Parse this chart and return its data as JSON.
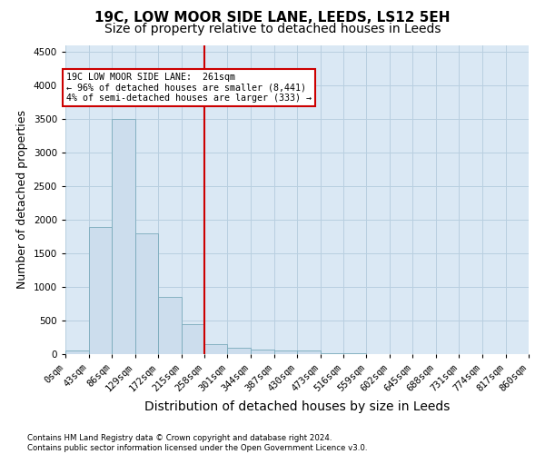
{
  "title": "19C, LOW MOOR SIDE LANE, LEEDS, LS12 5EH",
  "subtitle": "Size of property relative to detached houses in Leeds",
  "xlabel": "Distribution of detached houses by size in Leeds",
  "ylabel": "Number of detached properties",
  "bar_color": "#ccdded",
  "bar_edge_color": "#7aaabb",
  "vline_color": "#cc0000",
  "annotation_line1": "19C LOW MOOR SIDE LANE:  261sqm",
  "annotation_line2": "← 96% of detached houses are smaller (8,441)",
  "annotation_line3": "4% of semi-detached houses are larger (333) →",
  "annotation_box_color": "#cc0000",
  "footnote": "Contains HM Land Registry data © Crown copyright and database right 2024.\nContains public sector information licensed under the Open Government Licence v3.0.",
  "bin_edges": [
    0,
    43,
    86,
    129,
    172,
    215,
    258,
    301,
    344,
    387,
    430,
    473,
    516,
    559,
    602,
    645,
    688,
    731,
    774,
    817,
    860
  ],
  "bin_labels": [
    "0sqm",
    "43sqm",
    "86sqm",
    "129sqm",
    "172sqm",
    "215sqm",
    "258sqm",
    "301sqm",
    "344sqm",
    "387sqm",
    "430sqm",
    "473sqm",
    "516sqm",
    "559sqm",
    "602sqm",
    "645sqm",
    "688sqm",
    "731sqm",
    "774sqm",
    "817sqm",
    "860sqm"
  ],
  "bar_heights": [
    50,
    1900,
    3500,
    1800,
    850,
    450,
    150,
    100,
    70,
    60,
    55,
    20,
    10,
    5,
    3,
    2,
    1,
    1,
    0,
    0
  ],
  "vline_bin_index": 6,
  "ylim": [
    0,
    4600
  ],
  "yticks": [
    0,
    500,
    1000,
    1500,
    2000,
    2500,
    3000,
    3500,
    4000,
    4500
  ],
  "background_color": "#ffffff",
  "plot_bg_color": "#dae8f4",
  "grid_color": "#b8cfe0",
  "title_fontsize": 11,
  "subtitle_fontsize": 10,
  "axis_label_fontsize": 9,
  "tick_fontsize": 7.5
}
